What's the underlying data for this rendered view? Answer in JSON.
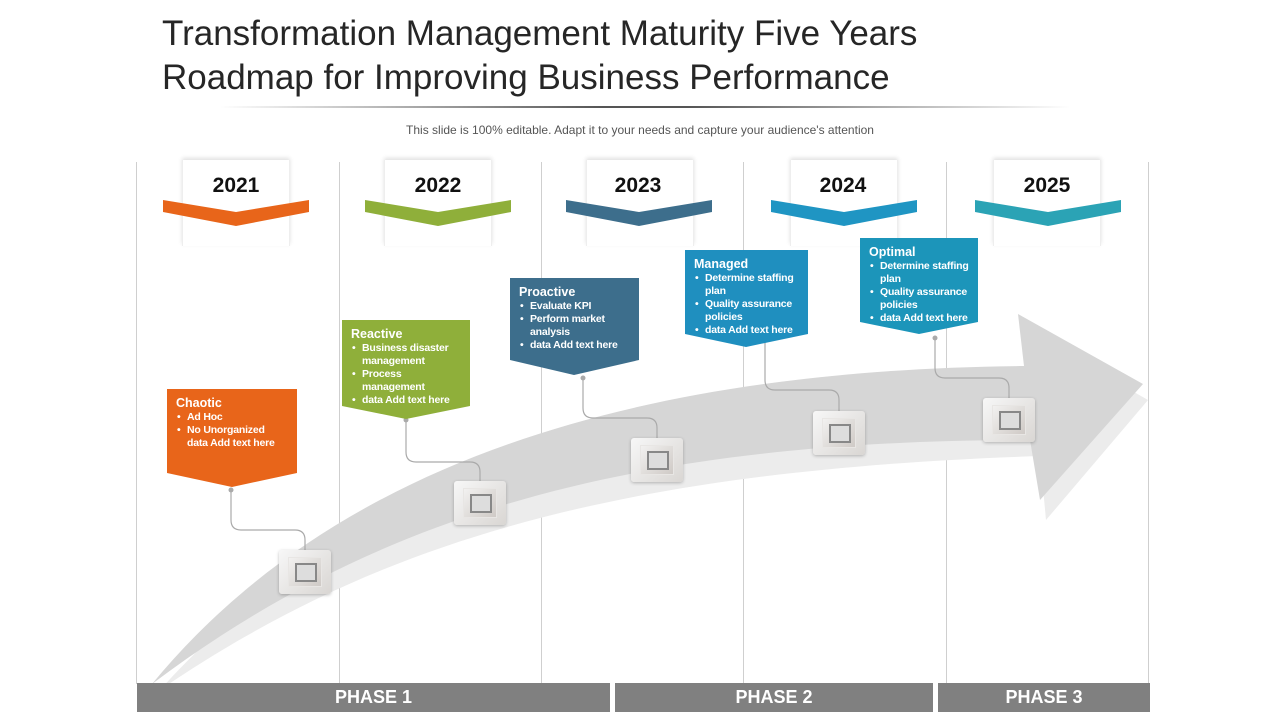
{
  "title": {
    "line1": "Transformation  Management Maturity Five Years",
    "line2": "Roadmap for Improving Business Performance"
  },
  "subtitle": "This slide is 100% editable. Adapt it to your needs and capture your audience's attention",
  "years": [
    {
      "label": "2021",
      "color": "#E8651A"
    },
    {
      "label": "2022",
      "color": "#8FAF3A"
    },
    {
      "label": "2023",
      "color": "#3D6E8C"
    },
    {
      "label": "2024",
      "color": "#1F95C3"
    },
    {
      "label": "2025",
      "color": "#2BA3B5"
    }
  ],
  "stages": [
    {
      "name": "Chaotic",
      "color": "#E8651A",
      "bullets": [
        "Ad Hoc",
        "No Unorganized data Add text here"
      ]
    },
    {
      "name": "Reactive",
      "color": "#8FAF3A",
      "bullets": [
        "Business disaster management",
        "Process management",
        "data Add text here"
      ]
    },
    {
      "name": "Proactive",
      "color": "#3D6E8C",
      "bullets": [
        "Evaluate KPI",
        "Perform market analysis",
        "data Add text here"
      ]
    },
    {
      "name": "Managed",
      "color": "#1F8FBF",
      "bullets": [
        "Determine staffing plan",
        "Quality assurance policies",
        "data Add text here"
      ]
    },
    {
      "name": "Optimal",
      "color": "#1C95BA",
      "bullets": [
        "Determine staffing plan",
        "Quality assurance policies",
        "data Add text here"
      ]
    }
  ],
  "phases": [
    "PHASE 1",
    "PHASE 2",
    "PHASE 3"
  ]
}
